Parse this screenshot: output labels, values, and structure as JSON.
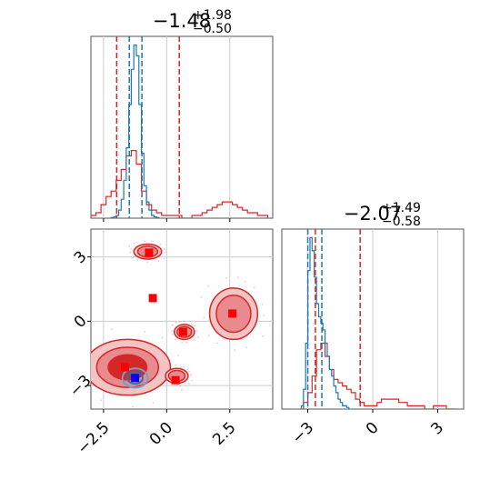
{
  "chart_data": [
    {
      "type": "histogram",
      "panel": "marginal-1",
      "title": {
        "value": "−1.48",
        "plus": "+1.98",
        "minus": "−0.50"
      },
      "xlim": [
        -3.0,
        4.2
      ],
      "grid": true,
      "xticks": [
        -2.5,
        0.0,
        2.5
      ],
      "series": [
        {
          "color": "#d62728",
          "bin_edges": [
            -3.0,
            -2.8,
            -2.6,
            -2.4,
            -2.2,
            -2.0,
            -1.8,
            -1.6,
            -1.4,
            -1.2,
            -1.0,
            -0.8,
            -0.6,
            -0.4,
            -0.2,
            0.0,
            0.2,
            0.4,
            0.6,
            0.8,
            1.0,
            1.2,
            1.4,
            1.6,
            1.8,
            2.0,
            2.2,
            2.4,
            2.6,
            2.8,
            3.0,
            3.2,
            3.4,
            3.6,
            3.8,
            4.0
          ],
          "counts": [
            1,
            2,
            5,
            8,
            10,
            14,
            18,
            23,
            25,
            20,
            10,
            5,
            3,
            2,
            1,
            1,
            1,
            1,
            0,
            0,
            1,
            1,
            2,
            3,
            4,
            5,
            6,
            6,
            5,
            4,
            3,
            2,
            2,
            1,
            1
          ]
        },
        {
          "color": "#1f77b4",
          "bin_edges": [
            -2.2,
            -2.1,
            -2.0,
            -1.9,
            -1.8,
            -1.7,
            -1.6,
            -1.5,
            -1.4,
            -1.3,
            -1.2,
            -1.1,
            -1.0,
            -0.9,
            -0.8,
            -0.7,
            -0.6,
            -0.5,
            -0.4,
            -0.3
          ],
          "counts": [
            0.2,
            0.5,
            1,
            3,
            7,
            14,
            26,
            42,
            55,
            64,
            60,
            42,
            24,
            12,
            6,
            3,
            1,
            0.5,
            0.2
          ]
        }
      ],
      "vlines": [
        {
          "x": -1.98,
          "color": "#d62728"
        },
        {
          "x": -1.48,
          "color": "#1f77b4"
        },
        {
          "x": -0.98,
          "color": "#1f77b4"
        },
        {
          "x": 0.5,
          "color": "#d62728"
        }
      ]
    },
    {
      "type": "histogram",
      "panel": "marginal-2",
      "title": {
        "value": "−2.07",
        "plus": "+1.49",
        "minus": "−0.58"
      },
      "xlim": [
        -4.2,
        4.2
      ],
      "grid": true,
      "xticks": [
        -3,
        0,
        3
      ],
      "series": [
        {
          "color": "#d62728",
          "bin_edges": [
            -3.2,
            -3.0,
            -2.8,
            -2.6,
            -2.4,
            -2.2,
            -2.0,
            -1.8,
            -1.6,
            -1.4,
            -1.2,
            -1.0,
            -0.8,
            -0.6,
            -0.4,
            -0.2,
            0.0,
            0.2,
            0.4,
            0.6,
            0.8,
            1.0,
            1.2,
            1.4,
            1.6,
            1.8,
            2.0,
            2.2,
            2.4,
            2.6,
            2.8,
            3.0,
            3.2,
            3.4,
            3.6,
            3.8
          ],
          "counts": [
            2,
            5,
            10,
            18,
            20,
            16,
            12,
            9,
            8,
            7,
            6,
            5,
            3,
            2,
            1,
            1,
            1,
            2,
            3,
            3,
            3,
            3,
            2,
            2,
            1,
            1,
            1,
            1,
            0,
            0,
            1,
            1,
            1,
            0,
            0
          ]
        },
        {
          "color": "#1f77b4",
          "bin_edges": [
            -3.3,
            -3.2,
            -3.1,
            -3.0,
            -2.9,
            -2.8,
            -2.7,
            -2.6,
            -2.5,
            -2.4,
            -2.3,
            -2.2,
            -2.1,
            -2.0,
            -1.9,
            -1.8,
            -1.7,
            -1.6,
            -1.5,
            -1.4,
            -1.3,
            -1.2,
            -1.1
          ],
          "counts": [
            1,
            6,
            20,
            42,
            52,
            48,
            40,
            32,
            28,
            26,
            24,
            20,
            16,
            12,
            10,
            7,
            5,
            3,
            2,
            1,
            1,
            0.5
          ]
        }
      ],
      "vlines": [
        {
          "x": -2.65,
          "color": "#d62728"
        },
        {
          "x": -3.0,
          "color": "#1f77b4"
        },
        {
          "x": -2.35,
          "color": "#1f77b4"
        },
        {
          "x": -0.58,
          "color": "#d62728"
        }
      ]
    },
    {
      "type": "contour",
      "panel": "joint",
      "xlim": [
        -3.0,
        4.2
      ],
      "ylim": [
        -4.1,
        4.3
      ],
      "grid": true,
      "xticks": [
        -2.5,
        0.0,
        2.5
      ],
      "yticks": [
        -3,
        0,
        3
      ],
      "red_regions": [
        {
          "cx": -1.55,
          "cy": -2.15,
          "rx": 1.7,
          "ry": 1.3
        },
        {
          "cx": 0.4,
          "cy": -2.55,
          "rx": 0.45,
          "ry": 0.35
        },
        {
          "cx": 2.65,
          "cy": 0.35,
          "rx": 0.95,
          "ry": 1.2
        },
        {
          "cx": 0.7,
          "cy": -0.5,
          "rx": 0.4,
          "ry": 0.35
        },
        {
          "cx": -0.75,
          "cy": 3.25,
          "rx": 0.55,
          "ry": 0.35
        }
      ],
      "red_points": [
        {
          "x": -0.7,
          "y": 3.2
        },
        {
          "x": -0.55,
          "y": 1.08
        },
        {
          "x": 2.6,
          "y": 0.36
        },
        {
          "x": 0.65,
          "y": -0.5
        },
        {
          "x": -1.65,
          "y": -2.15
        },
        {
          "x": 0.35,
          "y": -2.75
        }
      ],
      "blue_region": {
        "cx": -1.25,
        "cy": -2.65,
        "rx": 0.5,
        "ry": 0.45
      },
      "blue_points": [
        {
          "x": -1.25,
          "y": -2.65
        }
      ]
    }
  ]
}
